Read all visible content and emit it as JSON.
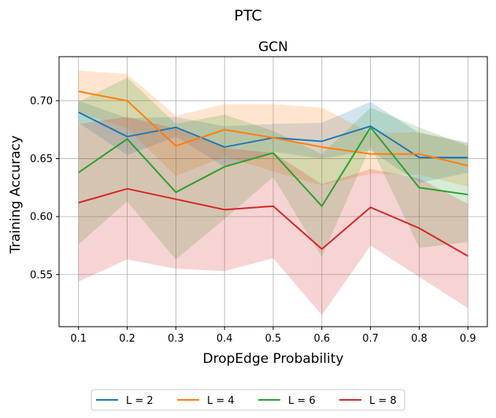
{
  "suptitle": "PTC",
  "chart_data": {
    "type": "line",
    "title": "GCN",
    "xlabel": "DropEdge Probability",
    "ylabel": "Training Accuracy",
    "x": [
      0.1,
      0.2,
      0.3,
      0.4,
      0.5,
      0.6,
      0.7,
      0.8,
      0.9
    ],
    "x_tick_labels": [
      "0.1",
      "0.2",
      "0.3",
      "0.4",
      "0.5",
      "0.6",
      "0.7",
      "0.8",
      "0.9"
    ],
    "y_ticks": [
      0.55,
      0.6,
      0.65,
      0.7
    ],
    "y_tick_labels": [
      "0.55",
      "0.60",
      "0.65",
      "0.70"
    ],
    "xlim": [
      0.06,
      0.94
    ],
    "ylim": [
      0.505,
      0.738
    ],
    "grid": true,
    "legend_position": "below plot",
    "series": [
      {
        "name": "L = 2",
        "color": "#1f77b4",
        "values": [
          0.69,
          0.669,
          0.677,
          0.66,
          0.668,
          0.665,
          0.678,
          0.651,
          0.651
        ],
        "upper": [
          0.7,
          0.685,
          0.686,
          0.678,
          0.68,
          0.681,
          0.699,
          0.672,
          0.664
        ],
        "lower": [
          0.681,
          0.653,
          0.669,
          0.643,
          0.656,
          0.65,
          0.657,
          0.629,
          0.638
        ]
      },
      {
        "name": "L = 4",
        "color": "#ff7f0e",
        "values": [
          0.708,
          0.7,
          0.661,
          0.675,
          0.668,
          0.66,
          0.654,
          0.654,
          0.644
        ],
        "upper": [
          0.726,
          0.723,
          0.687,
          0.697,
          0.697,
          0.694,
          0.672,
          0.673,
          0.663
        ],
        "lower": [
          0.69,
          0.676,
          0.635,
          0.652,
          0.639,
          0.627,
          0.637,
          0.636,
          0.626
        ]
      },
      {
        "name": "L = 6",
        "color": "#2ca02c",
        "values": [
          0.638,
          0.667,
          0.621,
          0.643,
          0.655,
          0.609,
          0.677,
          0.625,
          0.619
        ],
        "upper": [
          0.699,
          0.72,
          0.68,
          0.688,
          0.674,
          0.654,
          0.694,
          0.677,
          0.661
        ],
        "lower": [
          0.576,
          0.613,
          0.563,
          0.598,
          0.634,
          0.565,
          0.661,
          0.573,
          0.578
        ]
      },
      {
        "name": "L = 8",
        "color": "#d62728",
        "values": [
          0.612,
          0.624,
          0.615,
          0.606,
          0.609,
          0.572,
          0.608,
          0.59,
          0.566
        ],
        "upper": [
          0.68,
          0.686,
          0.676,
          0.659,
          0.655,
          0.628,
          0.641,
          0.633,
          0.611
        ],
        "lower": [
          0.544,
          0.563,
          0.555,
          0.553,
          0.564,
          0.515,
          0.575,
          0.548,
          0.521
        ]
      }
    ]
  }
}
